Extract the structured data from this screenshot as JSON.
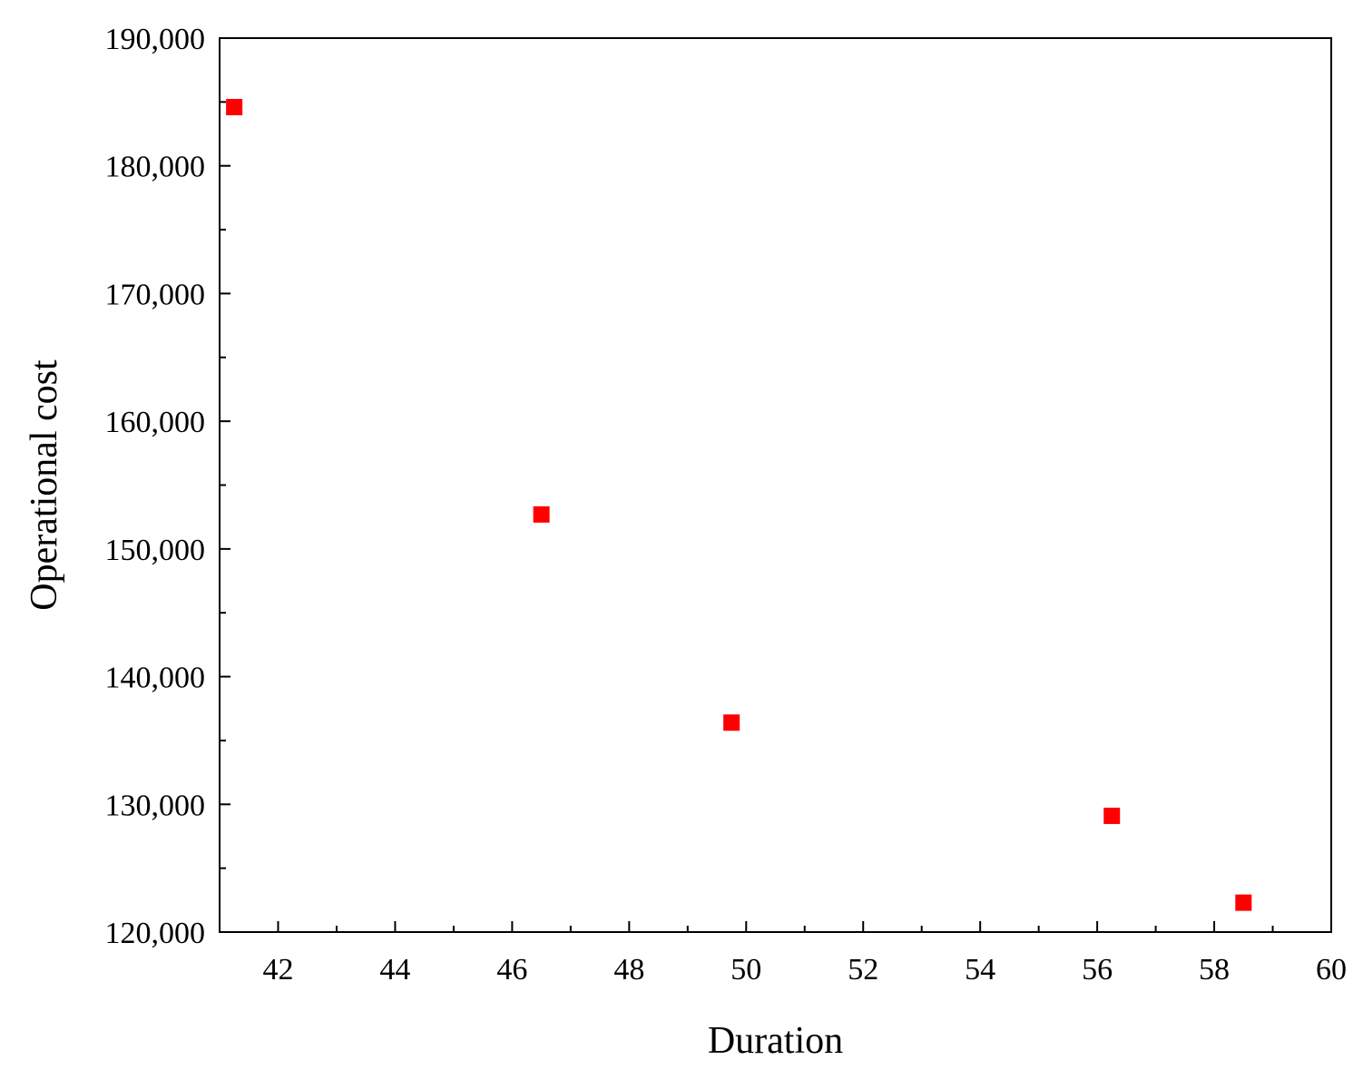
{
  "chart_data": {
    "type": "scatter",
    "title": "",
    "xlabel": "Duration",
    "ylabel": "Operational cost",
    "xlim": [
      41,
      60
    ],
    "ylim": [
      120000,
      190000
    ],
    "grid": false,
    "x_ticks": [
      42,
      44,
      46,
      48,
      50,
      52,
      54,
      56,
      58,
      60
    ],
    "x_tick_labels": [
      "42",
      "44",
      "46",
      "48",
      "50",
      "52",
      "54",
      "56",
      "58",
      "60"
    ],
    "y_ticks": [
      120000,
      130000,
      140000,
      150000,
      160000,
      170000,
      180000,
      190000
    ],
    "y_tick_labels": [
      "120,000",
      "130,000",
      "140,000",
      "150,000",
      "160,000",
      "170,000",
      "180,000",
      "190,000"
    ],
    "series": [
      {
        "marker": "square",
        "color": "#ff0000",
        "points": [
          {
            "x": 41.25,
            "y": 184600
          },
          {
            "x": 46.5,
            "y": 152700
          },
          {
            "x": 49.75,
            "y": 136400
          },
          {
            "x": 56.25,
            "y": 129100
          },
          {
            "x": 58.5,
            "y": 122300
          }
        ]
      }
    ]
  }
}
